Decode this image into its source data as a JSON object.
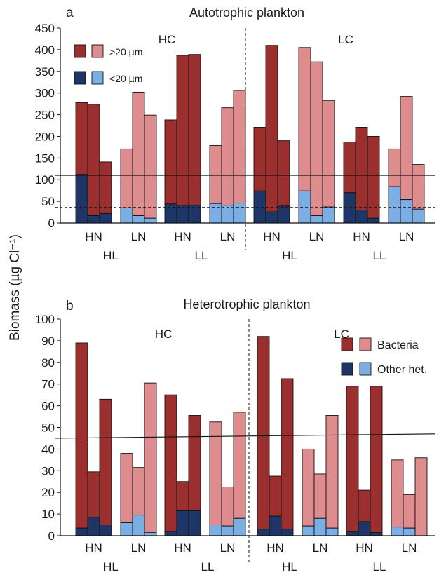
{
  "y_axis_label": "Biomass (µg Cl⁻¹)",
  "colors": {
    "dark_red": "#9b2f2e",
    "light_red": "#de8c8e",
    "dark_blue": "#1e3567",
    "light_blue": "#7aaee4"
  },
  "chart_data": [
    {
      "type": "bar",
      "stacked": true,
      "panel_letter": "a",
      "title": "Autotrophic plankton",
      "ylim": [
        0,
        450
      ],
      "yticks": [
        "0",
        "50",
        "100",
        "150",
        "200",
        "250",
        "300",
        "350",
        "400",
        "450"
      ],
      "ytick_values": [
        0,
        50,
        100,
        150,
        200,
        250,
        300,
        350,
        400,
        450
      ],
      "section_labels": [
        "HC",
        "LC"
      ],
      "group_labels": [
        "HN",
        "LN",
        "HN",
        "LN",
        "HN",
        "LN",
        "HN",
        "LN"
      ],
      "supergroup_labels": [
        "HL",
        "LL",
        "HL",
        "LL"
      ],
      "legend": {
        "items": [
          {
            "label": ">20 µm",
            "colors": [
              "dark_red",
              "light_red"
            ]
          },
          {
            "label": "<20 µm",
            "colors": [
              "dark_blue",
              "light_blue"
            ]
          }
        ]
      },
      "reference_lines": [
        {
          "y": 110,
          "style": "solid"
        },
        {
          "y": 36,
          "style": "dashed"
        }
      ],
      "groups": [
        {
          "shade": "dark",
          "totals": [
            278,
            274,
            141
          ],
          "bottoms": [
            112,
            17,
            22
          ]
        },
        {
          "shade": "light",
          "totals": [
            171,
            302,
            249
          ],
          "bottoms": [
            35,
            17,
            11
          ]
        },
        {
          "shade": "dark",
          "totals": [
            238,
            387,
            389
          ],
          "bottoms": [
            44,
            41,
            41
          ]
        },
        {
          "shade": "light",
          "totals": [
            179,
            266,
            306
          ],
          "bottoms": [
            45,
            41,
            46
          ]
        },
        {
          "shade": "dark",
          "totals": [
            221,
            410,
            190
          ],
          "bottoms": [
            74,
            26,
            39
          ]
        },
        {
          "shade": "light",
          "totals": [
            405,
            372,
            283
          ],
          "bottoms": [
            74,
            17,
            37
          ]
        },
        {
          "shade": "dark",
          "totals": [
            187,
            221,
            200
          ],
          "bottoms": [
            70,
            30,
            11
          ]
        },
        {
          "shade": "light",
          "totals": [
            171,
            292,
            135
          ],
          "bottoms": [
            84,
            54,
            32
          ]
        }
      ]
    },
    {
      "type": "bar",
      "stacked": true,
      "panel_letter": "b",
      "title": "Heterotrophic plankton",
      "ylim": [
        0,
        100
      ],
      "yticks": [
        "0",
        "10",
        "20",
        "30",
        "40",
        "50",
        "60",
        "70",
        "80",
        "90",
        "100"
      ],
      "ytick_values": [
        0,
        10,
        20,
        30,
        40,
        50,
        60,
        70,
        80,
        90,
        100
      ],
      "section_labels": [
        "HC",
        "LC"
      ],
      "group_labels": [
        "HN",
        "LN",
        "HN",
        "LN",
        "HN",
        "LN",
        "HN",
        "LN"
      ],
      "supergroup_labels": [
        "HL",
        "LL",
        "HL",
        "LL"
      ],
      "legend": {
        "items": [
          {
            "label": "Bacteria",
            "colors": [
              "dark_red",
              "light_red"
            ]
          },
          {
            "label": "Other het.",
            "colors": [
              "dark_blue",
              "light_blue"
            ]
          }
        ]
      },
      "reference_lines": [
        {
          "y_start": 45,
          "y_end": 47,
          "style": "solid"
        }
      ],
      "groups": [
        {
          "shade": "dark",
          "totals": [
            89,
            29.5,
            63
          ],
          "bottoms": [
            3.5,
            8.5,
            5
          ]
        },
        {
          "shade": "light",
          "totals": [
            38,
            31.5,
            70.5
          ],
          "bottoms": [
            6,
            9.5,
            1.5
          ]
        },
        {
          "shade": "dark",
          "totals": [
            65,
            25,
            55.5
          ],
          "bottoms": [
            2,
            11.5,
            11.5
          ]
        },
        {
          "shade": "light",
          "totals": [
            52.5,
            22.5,
            57
          ],
          "bottoms": [
            5,
            4.5,
            8
          ]
        },
        {
          "shade": "dark",
          "totals": [
            92,
            27.5,
            72.5
          ],
          "bottoms": [
            3,
            9,
            3
          ]
        },
        {
          "shade": "light",
          "totals": [
            40,
            28.5,
            55.5
          ],
          "bottoms": [
            4.5,
            8,
            3.5
          ]
        },
        {
          "shade": "dark",
          "totals": [
            69,
            21,
            69
          ],
          "bottoms": [
            2,
            6.5,
            1.5
          ]
        },
        {
          "shade": "light",
          "totals": [
            35,
            19,
            36
          ],
          "bottoms": [
            4,
            3.5,
            0
          ]
        }
      ]
    }
  ]
}
